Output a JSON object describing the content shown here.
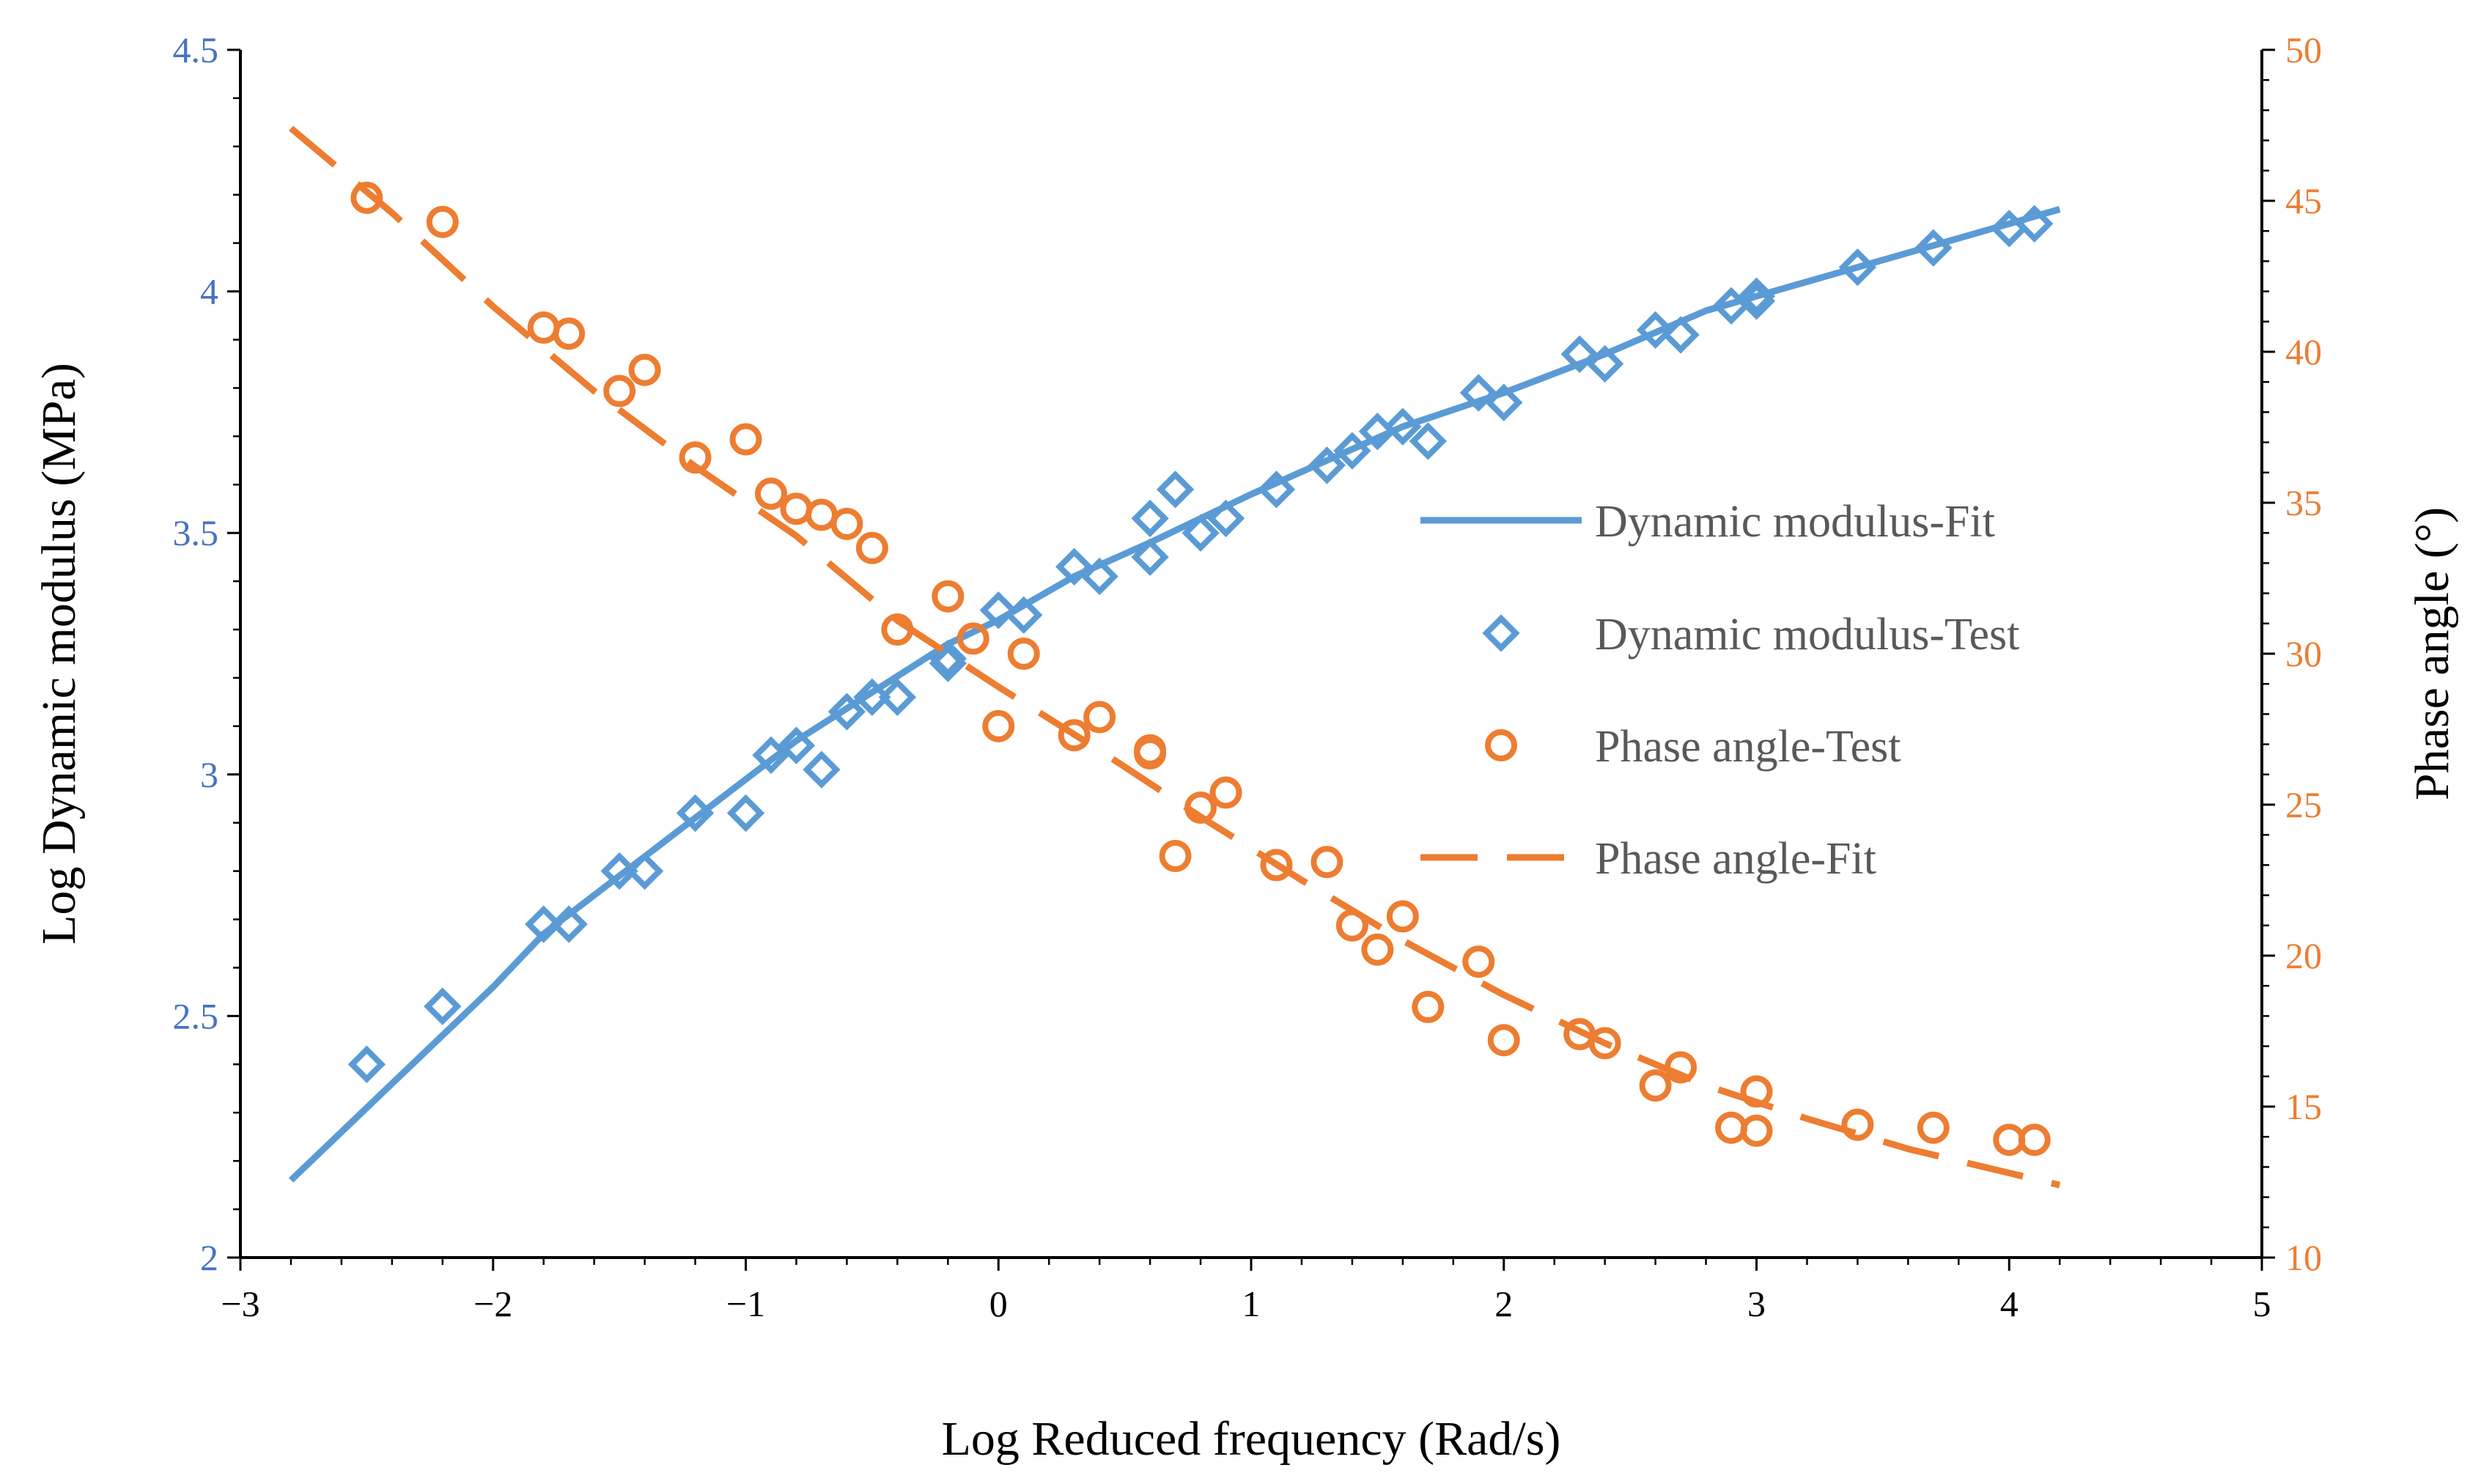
{
  "chart_data": {
    "type": "scatter",
    "xlabel": "Log Reduced frequency (Rad/s)",
    "ylabel_left": "Log Dynamic modulus (MPa)",
    "ylabel_right": "Phase angle (°)",
    "xlim": [
      -3,
      5
    ],
    "xticks": [
      "−3",
      "−2",
      "−1",
      "0",
      "1",
      "2",
      "3",
      "4",
      "5"
    ],
    "ylim_left": [
      2,
      4.5
    ],
    "yticks_left": [
      "2",
      "2.5",
      "3",
      "3.5",
      "4",
      "4.5"
    ],
    "ylim_right": [
      10,
      50
    ],
    "yticks_right": [
      "10",
      "15",
      "20",
      "25",
      "30",
      "35",
      "40",
      "45",
      "50"
    ],
    "grid": false,
    "legend_position": "center-right",
    "colors": {
      "modulus": "#5B9BD5",
      "phase": "#ED7D31",
      "left_axis_text": "#4472C4",
      "right_axis_text": "#ED7D31"
    },
    "series": [
      {
        "name": "Dynamic modulus-Fit",
        "axis": "left",
        "style": "solid-line",
        "x": [
          -2.8,
          -2.5,
          -2.2,
          -2.0,
          -1.8,
          -1.5,
          -1.2,
          -1.0,
          -0.8,
          -0.5,
          -0.2,
          0.0,
          0.3,
          0.6,
          1.0,
          1.3,
          1.6,
          2.0,
          2.4,
          2.8,
          3.2,
          3.6,
          4.0,
          4.2
        ],
        "y": [
          2.16,
          2.31,
          2.46,
          2.56,
          2.67,
          2.79,
          2.91,
          2.99,
          3.07,
          3.17,
          3.27,
          3.32,
          3.41,
          3.48,
          3.58,
          3.65,
          3.72,
          3.79,
          3.87,
          3.96,
          4.02,
          4.08,
          4.14,
          4.17
        ]
      },
      {
        "name": "Dynamic modulus-Test",
        "axis": "left",
        "style": "diamond-marker",
        "x": [
          -2.5,
          -2.2,
          -1.8,
          -1.7,
          -1.5,
          -1.4,
          -1.2,
          -1.0,
          -0.9,
          -0.8,
          -0.7,
          -0.6,
          -0.5,
          -0.4,
          -0.2,
          -0.2,
          0.0,
          0.1,
          0.3,
          0.4,
          0.6,
          0.6,
          0.7,
          0.8,
          0.9,
          1.1,
          1.3,
          1.4,
          1.5,
          1.6,
          1.7,
          1.9,
          2.0,
          2.3,
          2.4,
          2.6,
          2.7,
          2.9,
          3.0,
          3.0,
          3.4,
          3.7,
          4.0,
          4.1
        ],
        "y": [
          2.4,
          2.52,
          2.69,
          2.69,
          2.8,
          2.8,
          2.92,
          2.92,
          3.04,
          3.06,
          3.01,
          3.13,
          3.16,
          3.16,
          3.24,
          3.23,
          3.34,
          3.33,
          3.43,
          3.41,
          3.53,
          3.45,
          3.59,
          3.5,
          3.53,
          3.59,
          3.64,
          3.67,
          3.71,
          3.72,
          3.69,
          3.79,
          3.77,
          3.87,
          3.85,
          3.92,
          3.91,
          3.97,
          3.99,
          3.98,
          4.05,
          4.09,
          4.13,
          4.14
        ]
      },
      {
        "name": "Phase angle-Test",
        "axis": "right",
        "style": "circle-marker",
        "x": [
          -2.5,
          -2.2,
          -1.8,
          -1.7,
          -1.5,
          -1.4,
          -1.2,
          -1.0,
          -0.9,
          -0.8,
          -0.7,
          -0.6,
          -0.5,
          -0.4,
          -0.2,
          -0.1,
          0.0,
          0.1,
          0.3,
          0.4,
          0.6,
          0.6,
          0.7,
          0.8,
          0.9,
          1.1,
          1.3,
          1.4,
          1.5,
          1.6,
          1.7,
          1.9,
          2.0,
          2.3,
          2.4,
          2.6,
          2.7,
          2.9,
          3.0,
          3.0,
          3.4,
          3.7,
          4.0,
          4.1
        ],
        "y": [
          45.1,
          44.3,
          40.8,
          40.6,
          38.7,
          39.4,
          36.5,
          37.1,
          35.3,
          34.8,
          34.6,
          34.3,
          33.5,
          30.8,
          31.9,
          30.5,
          27.6,
          30.0,
          27.3,
          27.9,
          26.8,
          26.7,
          23.3,
          24.9,
          25.4,
          23.0,
          23.1,
          21.0,
          20.2,
          21.3,
          18.3,
          19.8,
          17.2,
          17.4,
          17.1,
          15.7,
          16.3,
          14.3,
          14.2,
          15.5,
          14.4,
          14.3,
          13.9,
          13.9
        ]
      },
      {
        "name": "Phase angle-Fit",
        "axis": "right",
        "style": "dashed-line",
        "x": [
          -2.8,
          -2.4,
          -2.0,
          -1.6,
          -1.2,
          -0.8,
          -0.4,
          0.0,
          0.4,
          0.8,
          1.2,
          1.6,
          2.0,
          2.4,
          2.8,
          3.2,
          3.6,
          4.0,
          4.2
        ],
        "y": [
          47.4,
          44.6,
          41.5,
          38.7,
          36.2,
          33.9,
          31.1,
          28.9,
          26.8,
          24.6,
          22.5,
          20.5,
          18.7,
          17.1,
          15.7,
          14.6,
          13.6,
          12.8,
          12.4
        ]
      }
    ]
  }
}
